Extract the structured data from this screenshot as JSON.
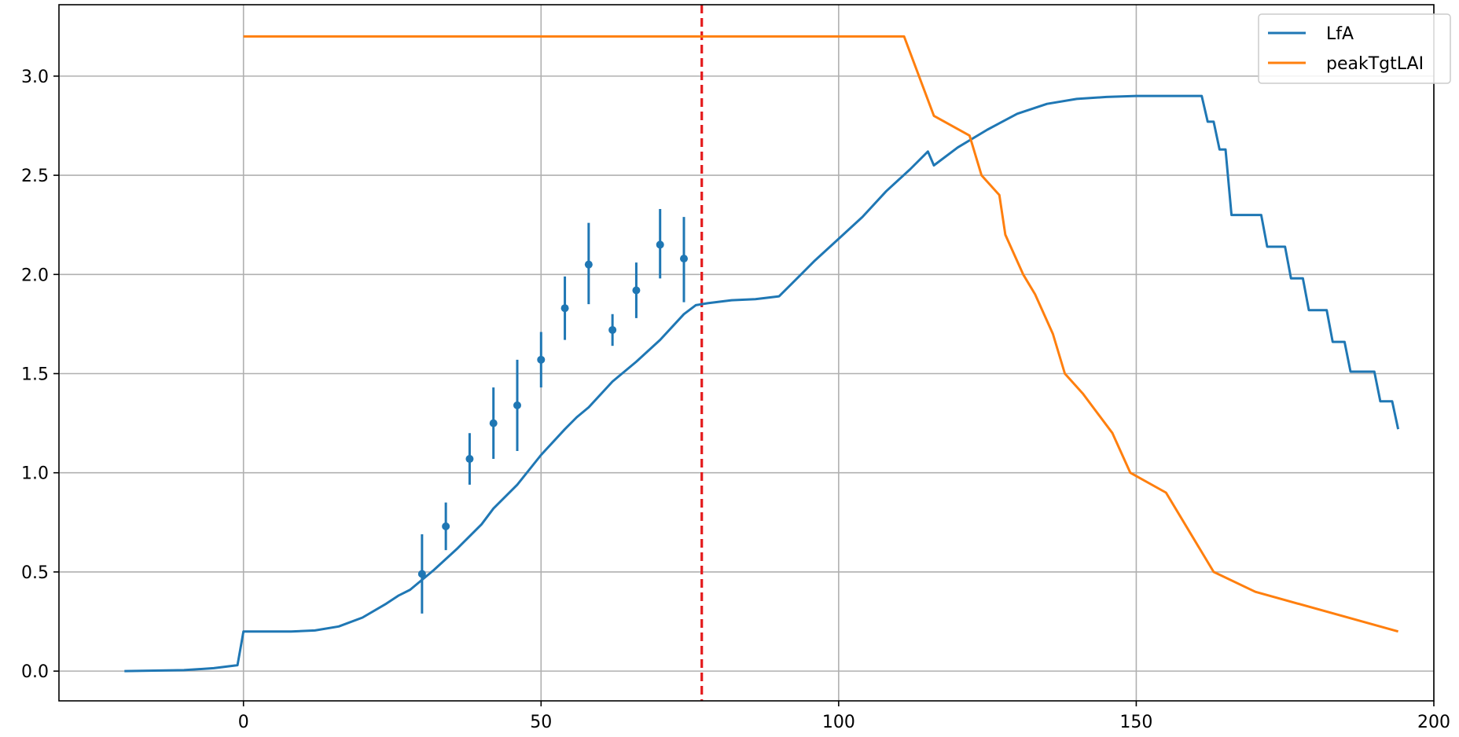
{
  "chart_data": {
    "type": "line",
    "title": "",
    "xlabel": "",
    "ylabel": "",
    "xlim": [
      -31,
      200
    ],
    "ylim": [
      -0.15,
      3.36
    ],
    "xticks": [
      0,
      50,
      100,
      150,
      200
    ],
    "yticks": [
      0.0,
      0.5,
      1.0,
      1.5,
      2.0,
      2.5,
      3.0
    ],
    "xtick_labels": [
      "0",
      "50",
      "100",
      "150",
      "200"
    ],
    "ytick_labels": [
      "0.0",
      "0.5",
      "1.0",
      "1.5",
      "2.0",
      "2.5",
      "3.0"
    ],
    "grid": true,
    "legend_position": "top-right",
    "vline": {
      "x": 77,
      "color": "#e41a1c",
      "style": "dashed"
    },
    "series": [
      {
        "name": "LfA",
        "color": "#1f77b4",
        "points": [
          [
            -20,
            0.0
          ],
          [
            -10,
            0.005
          ],
          [
            -5,
            0.015
          ],
          [
            -1,
            0.03
          ],
          [
            0,
            0.2
          ],
          [
            8,
            0.2
          ],
          [
            12,
            0.205
          ],
          [
            16,
            0.225
          ],
          [
            20,
            0.27
          ],
          [
            24,
            0.34
          ],
          [
            26,
            0.38
          ],
          [
            28,
            0.41
          ],
          [
            32,
            0.51
          ],
          [
            36,
            0.62
          ],
          [
            40,
            0.74
          ],
          [
            42,
            0.82
          ],
          [
            46,
            0.94
          ],
          [
            50,
            1.09
          ],
          [
            54,
            1.22
          ],
          [
            56,
            1.28
          ],
          [
            58,
            1.33
          ],
          [
            62,
            1.46
          ],
          [
            66,
            1.56
          ],
          [
            70,
            1.67
          ],
          [
            74,
            1.8
          ],
          [
            76,
            1.845
          ],
          [
            78,
            1.855
          ],
          [
            82,
            1.87
          ],
          [
            86,
            1.875
          ],
          [
            90,
            1.89
          ],
          [
            92,
            1.95
          ],
          [
            96,
            2.07
          ],
          [
            100,
            2.18
          ],
          [
            104,
            2.29
          ],
          [
            108,
            2.42
          ],
          [
            112,
            2.53
          ],
          [
            115,
            2.62
          ],
          [
            116,
            2.55
          ],
          [
            120,
            2.64
          ],
          [
            125,
            2.73
          ],
          [
            130,
            2.81
          ],
          [
            135,
            2.86
          ],
          [
            140,
            2.885
          ],
          [
            145,
            2.895
          ],
          [
            150,
            2.9
          ],
          [
            161,
            2.9
          ],
          [
            162,
            2.77
          ],
          [
            163,
            2.77
          ],
          [
            164,
            2.63
          ],
          [
            165,
            2.63
          ],
          [
            166,
            2.3
          ],
          [
            171,
            2.3
          ],
          [
            172,
            2.14
          ],
          [
            175,
            2.14
          ],
          [
            176,
            1.98
          ],
          [
            178,
            1.98
          ],
          [
            179,
            1.82
          ],
          [
            182,
            1.82
          ],
          [
            183,
            1.66
          ],
          [
            185,
            1.66
          ],
          [
            186,
            1.51
          ],
          [
            190,
            1.51
          ],
          [
            191,
            1.36
          ],
          [
            193,
            1.36
          ],
          [
            194,
            1.22
          ]
        ]
      },
      {
        "name": "peakTgtLAI",
        "color": "#ff7f0e",
        "points": [
          [
            0,
            3.2
          ],
          [
            111,
            3.2
          ],
          [
            116,
            2.8
          ],
          [
            122,
            2.7
          ],
          [
            124,
            2.5
          ],
          [
            127,
            2.4
          ],
          [
            128,
            2.2
          ],
          [
            131,
            2.0
          ],
          [
            133,
            1.9
          ],
          [
            136,
            1.7
          ],
          [
            138,
            1.5
          ],
          [
            141,
            1.4
          ],
          [
            146,
            1.2
          ],
          [
            149,
            1.0
          ],
          [
            155,
            0.9
          ],
          [
            163,
            0.5
          ],
          [
            170,
            0.4
          ],
          [
            194,
            0.2
          ]
        ]
      }
    ],
    "observations": {
      "color": "#1f77b4",
      "points": [
        {
          "x": 30,
          "y": 0.49,
          "lo": 0.29,
          "hi": 0.69
        },
        {
          "x": 34,
          "y": 0.73,
          "lo": 0.61,
          "hi": 0.85
        },
        {
          "x": 38,
          "y": 1.07,
          "lo": 0.94,
          "hi": 1.2
        },
        {
          "x": 42,
          "y": 1.25,
          "lo": 1.07,
          "hi": 1.43
        },
        {
          "x": 46,
          "y": 1.34,
          "lo": 1.11,
          "hi": 1.57
        },
        {
          "x": 50,
          "y": 1.57,
          "lo": 1.43,
          "hi": 1.71
        },
        {
          "x": 54,
          "y": 1.83,
          "lo": 1.67,
          "hi": 1.99
        },
        {
          "x": 58,
          "y": 2.05,
          "lo": 1.85,
          "hi": 2.26
        },
        {
          "x": 62,
          "y": 1.72,
          "lo": 1.64,
          "hi": 1.8
        },
        {
          "x": 66,
          "y": 1.92,
          "lo": 1.78,
          "hi": 2.06
        },
        {
          "x": 70,
          "y": 2.15,
          "lo": 1.98,
          "hi": 2.33
        },
        {
          "x": 74,
          "y": 2.08,
          "lo": 1.86,
          "hi": 2.29
        }
      ]
    }
  }
}
